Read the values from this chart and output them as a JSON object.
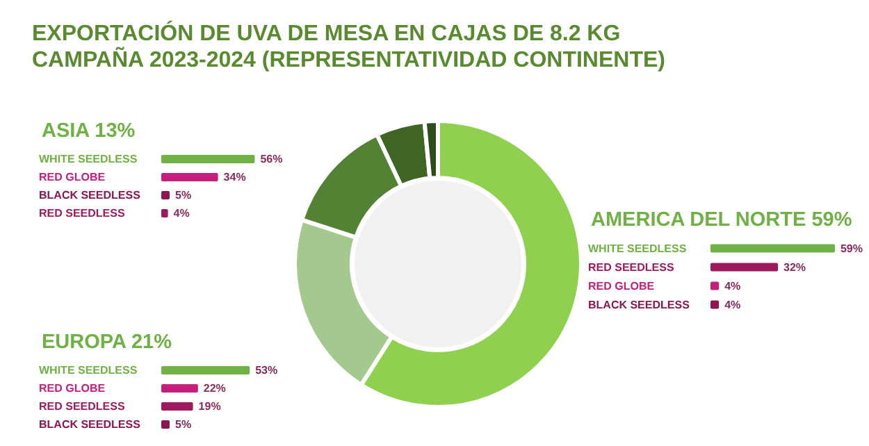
{
  "chart_data": [
    {
      "type": "donut",
      "title": "EXPORTACIÓN DE UVA DE MESA EN CAJAS DE 8.2 KG\nCAMPAÑA 2023-2024 (REPRESENTATIVIDAD CONTINENTE)",
      "categories": [
        null,
        null,
        null,
        null,
        null
      ],
      "values": [
        59,
        21,
        13,
        5.5,
        1.5
      ],
      "colors": [
        "#8fd14f",
        "#a3c98f",
        "#548235",
        "#3f6525",
        "#2e4d1c"
      ]
    },
    {
      "type": "bar",
      "orientation": "horizontal",
      "title": "ASIA 13%",
      "categories": [
        "WHITE SEEDLESS",
        "RED GLOBE",
        "BLACK SEEDLESS",
        "RED SEEDLESS"
      ],
      "values": [
        56,
        34,
        5,
        4
      ],
      "value_labels": [
        "56%",
        "34%",
        "5%",
        "4%"
      ],
      "colors": [
        "#6fb144",
        "#c51f7e",
        "#8c1552",
        "#9e1a5e"
      ],
      "tick_labels": false
    },
    {
      "type": "bar",
      "orientation": "horizontal",
      "title": "EUROPA 21%",
      "categories": [
        "WHITE SEEDLESS",
        "RED GLOBE",
        "RED SEEDLESS",
        "BLACK SEEDLESS"
      ],
      "values": [
        53,
        22,
        19,
        5
      ],
      "value_labels": [
        "53%",
        "22%",
        "19%",
        "5%"
      ],
      "colors": [
        "#6fb144",
        "#c51f7e",
        "#9e1a5e",
        "#8c1552"
      ],
      "tick_labels": false
    },
    {
      "type": "bar",
      "orientation": "horizontal",
      "title": "AMERICA DEL NORTE 59%",
      "categories": [
        "WHITE SEEDLESS",
        "RED SEEDLESS",
        "RED GLOBE",
        "BLACK SEEDLESS"
      ],
      "values": [
        59,
        32,
        4,
        4
      ],
      "value_labels": [
        "59%",
        "32%",
        "4%",
        "4%"
      ],
      "colors": [
        "#6fb144",
        "#9e1a5e",
        "#c51f7e",
        "#8c1552"
      ],
      "tick_labels": false
    }
  ]
}
